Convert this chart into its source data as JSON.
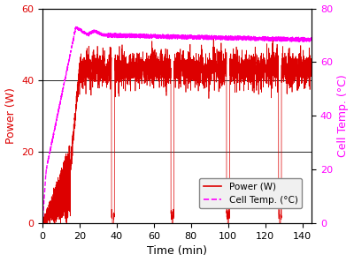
{
  "xlabel": "Time (min)",
  "ylabel_left": "Power (W)",
  "ylabel_right": "Cell Temp. (°C)",
  "xlim": [
    0,
    145
  ],
  "ylim_left": [
    0,
    60
  ],
  "ylim_right": [
    0,
    80
  ],
  "yticks_left": [
    0,
    20,
    40,
    60
  ],
  "yticks_right": [
    0,
    20,
    40,
    60,
    80
  ],
  "xticks": [
    0,
    20,
    40,
    60,
    80,
    100,
    120,
    140
  ],
  "power_color": "#dd0000",
  "temp_color": "#ff00ff",
  "legend_labels": [
    "Power (W)",
    "Cell Temp. (°C)"
  ],
  "figsize": [
    4.0,
    2.97
  ],
  "dpi": 100,
  "bg_color": "#ffffff",
  "grid_color": "#000000",
  "hline_y": [
    20,
    40
  ],
  "power_stable": 43,
  "power_noise": 2.5,
  "temp_peak": 73,
  "temp_stable": 70,
  "dip_times": [
    38,
    70,
    100,
    128
  ],
  "rise_end": 20,
  "ylabel_left_color": "#dd0000",
  "ylabel_right_color": "#ff00ff",
  "tick_color_left": "#dd0000",
  "tick_color_right": "#ff00ff"
}
